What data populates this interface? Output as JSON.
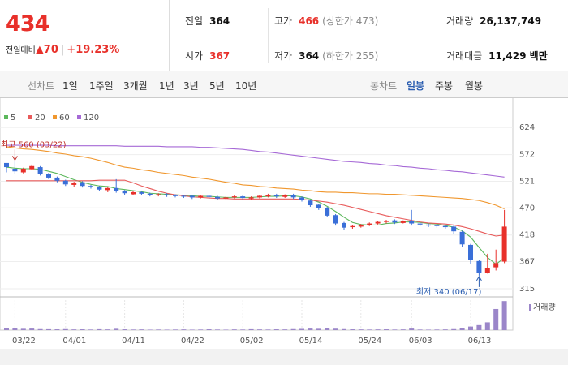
{
  "header": {
    "price": "434",
    "change_label": "전일대비",
    "change": "▲70",
    "change_pct": "+19.23%"
  },
  "quote": [
    {
      "label": "전일",
      "value": "364"
    },
    {
      "label": "고가",
      "value": "466",
      "note": "(상한가 473)"
    },
    {
      "label": "거래량",
      "value": "26,137,749"
    },
    {
      "label": "시가",
      "value": "367"
    },
    {
      "label": "저가",
      "value": "364",
      "note": "(하한가 255)"
    },
    {
      "label": "거래대금",
      "value": "11,429 백만"
    }
  ],
  "line_chart": {
    "label": "선차트",
    "options": [
      "1일",
      "1주일",
      "3개월",
      "1년",
      "3년",
      "5년",
      "10년"
    ]
  },
  "candle_chart": {
    "label": "봉차트",
    "options": [
      "일봉",
      "주봉",
      "월봉"
    ]
  },
  "chart_data": {
    "type": "candlestick",
    "up_color": "#e8302a",
    "down_color": "#3a6fd8",
    "categories": [
      null,
      "03/22",
      null,
      null,
      null,
      null,
      null,
      "04/01",
      null,
      null,
      null,
      null,
      null,
      null,
      "04/11",
      null,
      null,
      null,
      null,
      null,
      null,
      "04/22",
      null,
      null,
      null,
      null,
      null,
      null,
      "05/02",
      null,
      null,
      null,
      null,
      null,
      null,
      "05/14",
      null,
      null,
      null,
      null,
      null,
      null,
      "05/24",
      null,
      null,
      null,
      null,
      null,
      "06/03",
      null,
      null,
      null,
      null,
      null,
      null,
      "06/13",
      null,
      null,
      null,
      null
    ],
    "open": [
      556,
      545,
      538,
      544,
      548,
      535,
      528,
      522,
      514,
      519,
      512,
      510,
      504,
      508,
      502,
      496,
      500,
      497,
      494,
      496,
      494,
      493,
      493,
      490,
      493,
      491,
      488,
      490,
      492,
      488,
      490,
      492,
      495,
      491,
      495,
      490,
      484,
      476,
      470,
      456,
      441,
      433,
      434,
      437,
      440,
      443,
      446,
      441,
      445,
      440,
      438,
      437,
      435,
      434,
      424,
      399,
      368,
      346,
      356,
      367
    ],
    "high": [
      555,
      560,
      547,
      553,
      550,
      537,
      530,
      524,
      520,
      521,
      514,
      512,
      510,
      525,
      504,
      502,
      502,
      499,
      498,
      498,
      496,
      495,
      495,
      495,
      495,
      493,
      492,
      494,
      494,
      492,
      495,
      497,
      497,
      496,
      497,
      492,
      486,
      478,
      472,
      458,
      443,
      437,
      439,
      442,
      445,
      447,
      448,
      446,
      466,
      442,
      440,
      439,
      437,
      436,
      426,
      401,
      370,
      382,
      390,
      466
    ],
    "low": [
      538,
      535,
      536,
      542,
      532,
      525,
      519,
      512,
      510,
      509,
      507,
      502,
      500,
      499,
      495,
      494,
      494,
      492,
      492,
      491,
      490,
      489,
      487,
      488,
      488,
      485,
      486,
      488,
      486,
      486,
      488,
      490,
      489,
      489,
      487,
      482,
      472,
      466,
      452,
      436,
      428,
      430,
      432,
      435,
      438,
      440,
      439,
      440,
      436,
      435,
      433,
      432,
      430,
      420,
      395,
      362,
      340,
      344,
      350,
      364
    ],
    "close": [
      548,
      540,
      545,
      550,
      535,
      528,
      522,
      515,
      518,
      512,
      510,
      505,
      508,
      502,
      498,
      500,
      497,
      495,
      496,
      494,
      493,
      492,
      490,
      493,
      491,
      488,
      490,
      492,
      489,
      490,
      493,
      495,
      492,
      494,
      490,
      485,
      475,
      470,
      455,
      440,
      432,
      435,
      437,
      440,
      443,
      445,
      442,
      444,
      440,
      438,
      436,
      435,
      433,
      425,
      400,
      370,
      345,
      355,
      364,
      434
    ],
    "moving_averages": [
      {
        "name": "5",
        "color": "#5cb85c",
        "values": [
          548,
          546,
          545,
          545,
          544,
          540,
          536,
          530,
          524,
          519,
          515,
          512,
          511,
          507,
          505,
          503,
          501,
          498,
          497,
          496,
          495,
          494,
          493,
          492,
          492,
          491,
          490,
          490,
          490,
          490,
          491,
          492,
          492,
          493,
          493,
          491,
          487,
          481,
          473,
          463,
          452,
          442,
          438,
          437,
          437,
          440,
          441,
          443,
          443,
          442,
          440,
          439,
          436,
          433,
          426,
          414,
          394,
          375,
          362,
          374
        ]
      },
      {
        "name": "20",
        "color": "#e85a5a",
        "values": [
          522,
          522,
          522,
          522,
          522,
          522,
          522,
          522,
          522,
          522,
          522,
          523,
          523,
          523,
          523,
          518,
          512,
          507,
          502,
          498,
          495,
          493,
          491,
          490,
          489,
          488,
          488,
          487,
          487,
          487,
          487,
          487,
          487,
          487,
          487,
          486,
          485,
          483,
          481,
          478,
          475,
          471,
          467,
          463,
          459,
          455,
          452,
          449,
          446,
          443,
          441,
          440,
          439,
          437,
          434,
          430,
          425,
          420,
          416,
          418
        ]
      },
      {
        "name": "60",
        "color": "#f0972e",
        "values": [
          587,
          585,
          583,
          582,
          580,
          578,
          575,
          573,
          570,
          568,
          565,
          561,
          557,
          552,
          548,
          546,
          543,
          541,
          538,
          536,
          534,
          532,
          529,
          527,
          525,
          522,
          519,
          517,
          514,
          513,
          511,
          510,
          508,
          507,
          506,
          504,
          503,
          501,
          500,
          500,
          499,
          499,
          498,
          497,
          497,
          496,
          496,
          495,
          494,
          493,
          492,
          491,
          490,
          489,
          488,
          486,
          484,
          480,
          475,
          468
        ]
      },
      {
        "name": "120",
        "color": "#a669d6",
        "values": [
          590,
          590,
          590,
          590,
          590,
          590,
          589,
          589,
          589,
          589,
          589,
          589,
          589,
          589,
          588,
          588,
          588,
          588,
          588,
          587,
          587,
          587,
          587,
          586,
          586,
          585,
          584,
          583,
          582,
          580,
          578,
          577,
          575,
          573,
          571,
          569,
          567,
          565,
          563,
          561,
          559,
          558,
          557,
          555,
          554,
          552,
          551,
          549,
          548,
          546,
          545,
          543,
          542,
          540,
          539,
          537,
          535,
          533,
          531,
          529
        ]
      }
    ],
    "volume": {
      "name": "거래량",
      "color": "#9b86c9",
      "ylim": [
        0,
        27000000
      ],
      "values": [
        1800000,
        1500000,
        1200000,
        1400000,
        900000,
        800000,
        700000,
        900000,
        600000,
        700000,
        500000,
        800000,
        600000,
        1200000,
        700000,
        500000,
        600000,
        400000,
        500000,
        400000,
        500000,
        600000,
        400000,
        500000,
        700000,
        500000,
        400000,
        600000,
        500000,
        800000,
        600000,
        500000,
        700000,
        600000,
        900000,
        1100000,
        1400000,
        1200000,
        1500000,
        1300000,
        900000,
        700000,
        600000,
        500000,
        600000,
        700000,
        500000,
        600000,
        1400000,
        500000,
        400000,
        500000,
        600000,
        900000,
        1600000,
        3200000,
        4500000,
        7000000,
        19000000,
        26137749
      ]
    },
    "ylim": [
      305,
      635
    ],
    "yticks": [
      315,
      367,
      418,
      470,
      521,
      572,
      624
    ],
    "grid": true,
    "annotations": [
      {
        "text": "최고 560 (03/22)",
        "series": "high",
        "value": 560,
        "color": "#c0302a"
      },
      {
        "text": "최저 340 (06/17)",
        "series": "low",
        "value": 340,
        "color": "#2a5db0"
      }
    ]
  }
}
